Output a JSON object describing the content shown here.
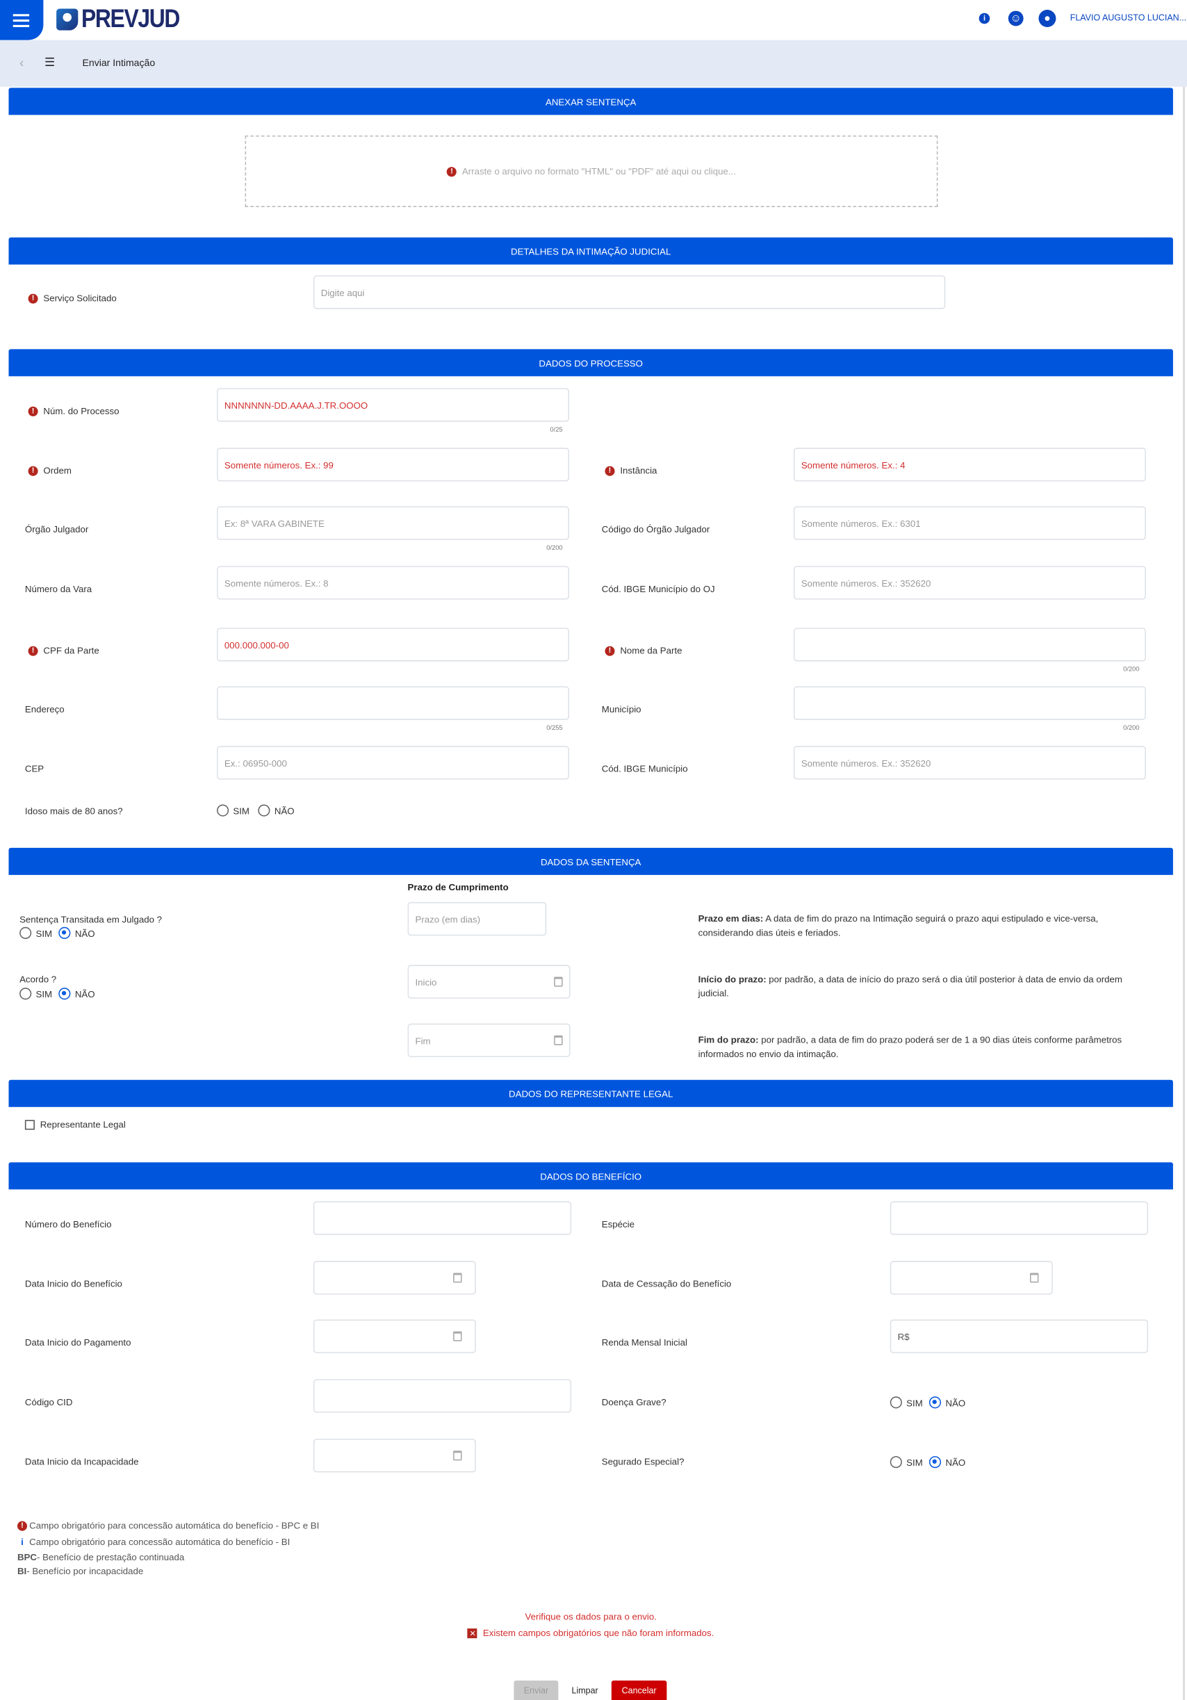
{
  "header": {
    "logo": "PREVJUD",
    "user_name": "FLAVIO AUGUSTO LUCIAN...",
    "icons": [
      "menu-icon",
      "info-icon",
      "accessibility-icon",
      "user-icon"
    ]
  },
  "breadcrumb": {
    "title": "Enviar Intimação"
  },
  "anexar": {
    "title": "ANEXAR SENTENÇA",
    "dropzone": "Arraste o arquivo no formato \"HTML\" ou \"PDF\" até aqui ou clique..."
  },
  "detalhes": {
    "title": "DETALHES DA INTIMAÇÃO JUDICIAL",
    "servico_label": "Serviço Solicitado",
    "servico_placeholder": "Digite aqui"
  },
  "processo": {
    "title": "DADOS DO PROCESSO",
    "fields": [
      {
        "label": "Núm. do Processo",
        "placeholder": "NNNNNNN-DD.AAAA.J.TR.OOOO",
        "required": true,
        "counter": "0/25"
      },
      {
        "label": "Ordem",
        "placeholder": "Somente números. Ex.: 99",
        "required": true
      },
      {
        "label": "Instância",
        "placeholder": "Somente números. Ex.: 4",
        "required": true
      },
      {
        "label": "Órgão Julgador",
        "placeholder": "Ex: 8ª VARA GABINETE",
        "counter": "0/200"
      },
      {
        "label": "Código do Órgão Julgador",
        "placeholder": "Somente números. Ex.: 6301"
      },
      {
        "label": "Número da Vara",
        "placeholder": "Somente números. Ex.: 8"
      },
      {
        "label": "Cód. IBGE Município do OJ",
        "placeholder": "Somente números. Ex.: 352620"
      },
      {
        "label": "CPF da Parte",
        "placeholder": "000.000.000-00",
        "required": true
      },
      {
        "label": "Nome da Parte",
        "placeholder": "",
        "required": true,
        "counter": "0/200"
      },
      {
        "label": "Endereço",
        "placeholder": "",
        "counter": "0/255"
      },
      {
        "label": "Município",
        "placeholder": "",
        "counter": "0/200"
      },
      {
        "label": "CEP",
        "placeholder": "Ex.: 06950-000"
      },
      {
        "label": "Cód. IBGE Município",
        "placeholder": "Somente números. Ex.: 352620"
      }
    ],
    "idoso_label": "Idoso mais de 80 anos?",
    "idoso_options": [
      "SIM",
      "NÃO"
    ],
    "idoso_selected": null
  },
  "sentenca": {
    "title": "DADOS DA SENTENÇA",
    "prazo_title": "Prazo de Cumprimento",
    "transitada_label": "Sentença Transitada em Julgado ?",
    "transitada_selected": "NÃO",
    "acordo_label": "Acordo ?",
    "acordo_selected": "NÃO",
    "options": [
      "SIM",
      "NÃO"
    ],
    "prazo_placeholder": "Prazo (em dias)",
    "inicio_placeholder": "Inicio",
    "fim_placeholder": "Fim",
    "help": [
      {
        "bold": "Prazo em dias:",
        "text": " A data de fim do prazo na Intimação seguirá o prazo aqui estipulado e vice-versa, considerando dias úteis e feriados."
      },
      {
        "bold": "Início do prazo:",
        "text": " por padrão, a data de início do prazo será o dia útil posterior à data de envio da ordem judicial."
      },
      {
        "bold": "Fim do prazo:",
        "text": " por padrão, a data de fim do prazo poderá ser de 1 a 90 dias úteis conforme parâmetros informados no envio da intimação."
      }
    ]
  },
  "representante": {
    "title": "DADOS DO REPRESENTANTE LEGAL",
    "checkbox_label": "Representante Legal",
    "checked": false
  },
  "beneficio": {
    "title": "DADOS DO BENEFÍCIO",
    "numero_label": "Número do Benefício",
    "especie_label": "Espécie",
    "data_inicio_label": "Data Inicio do Benefício",
    "data_cessacao_label": "Data de Cessação do Benefício",
    "data_pagamento_label": "Data Inicio do Pagamento",
    "renda_label": "Renda Mensal Inicial",
    "renda_placeholder": "R$",
    "cid_label": "Código CID",
    "doenca_label": "Doença Grave?",
    "doenca_selected": "NÃO",
    "incapacidade_label": "Data Inicio da Incapacidade",
    "segurado_label": "Segurado Especial?",
    "segurado_selected": "NÃO",
    "options": [
      "SIM",
      "NÃO"
    ]
  },
  "legend": {
    "req_bpc_bi": "Campo obrigatório para concessão automática do benefício - BPC e BI",
    "req_bi": "Campo obrigatório para concessão automática do benefício - BI",
    "bpc_abbr": "BPC",
    "bpc_text": " - Benefício de prestação continuada",
    "bi_abbr": "BI",
    "bi_text": " - Benefício por incapacidade"
  },
  "messages": {
    "verify": "Verifique os dados para o envio.",
    "error": "Existem campos obrigatórios que não foram informados."
  },
  "buttons": {
    "enviar": "Enviar",
    "limpar": "Limpar",
    "cancelar": "Cancelar"
  },
  "colors": {
    "primary": "#0055dd",
    "required": "#b3261e",
    "error": "#d32f2f",
    "cancel": "#cc0000",
    "disabled": "#c8c8c8"
  }
}
